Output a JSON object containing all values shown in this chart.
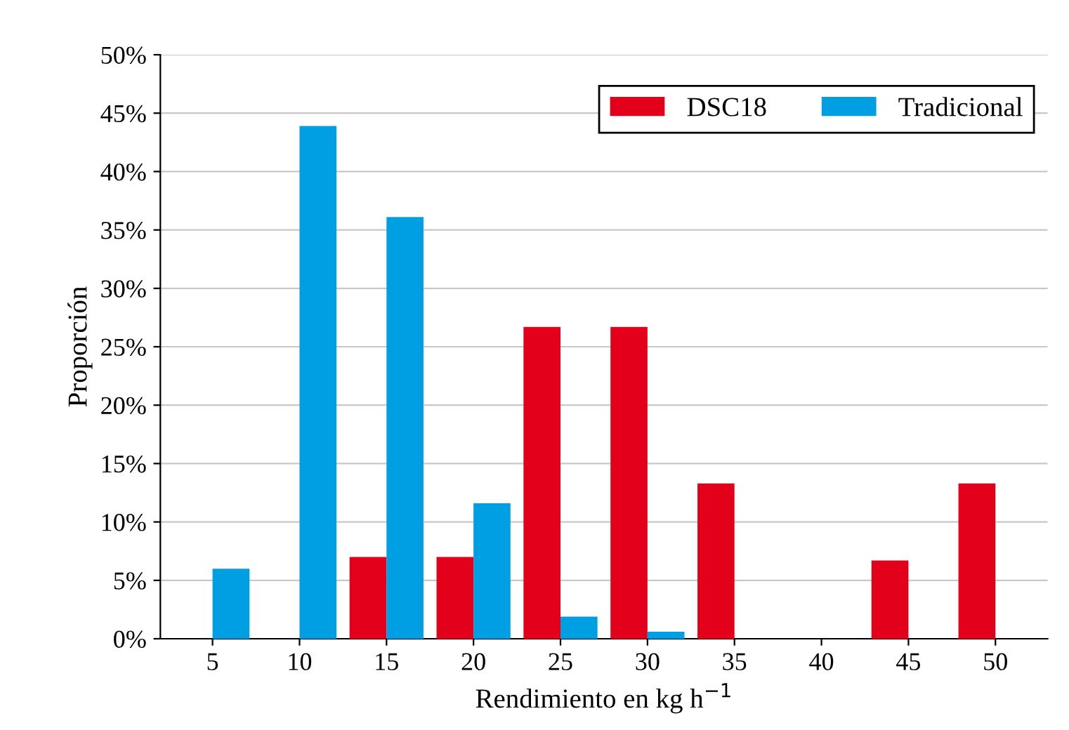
{
  "chart_data": {
    "type": "bar",
    "xlabel": "Rendimiento en kg h$^{−1}$",
    "ylabel": "Proporción",
    "categories": [
      "5",
      "10",
      "15",
      "20",
      "25",
      "30",
      "35",
      "40",
      "45",
      "50"
    ],
    "series": [
      {
        "name": "DSC18",
        "color": "#e2001a",
        "values": [
          0,
          0,
          7,
          7,
          26.7,
          26.7,
          13.3,
          0,
          6.7,
          13.3
        ]
      },
      {
        "name": "Tradicional",
        "color": "#009fe3",
        "values": [
          6,
          43.9,
          36.1,
          11.6,
          1.9,
          0.6,
          0,
          0,
          0,
          0
        ]
      }
    ],
    "ylim": [
      0,
      50
    ],
    "yticks": [
      {
        "value": 0,
        "label": "0%"
      },
      {
        "value": 5,
        "label": "5%"
      },
      {
        "value": 10,
        "label": "10%"
      },
      {
        "value": 15,
        "label": "15%"
      },
      {
        "value": 20,
        "label": "20%"
      },
      {
        "value": 25,
        "label": "25%"
      },
      {
        "value": 30,
        "label": "30%"
      },
      {
        "value": 35,
        "label": "35%"
      },
      {
        "value": 40,
        "label": "40%"
      },
      {
        "value": 45,
        "label": "45%"
      },
      {
        "value": 50,
        "label": "50%"
      }
    ],
    "grid": "y",
    "legend": "top right"
  }
}
